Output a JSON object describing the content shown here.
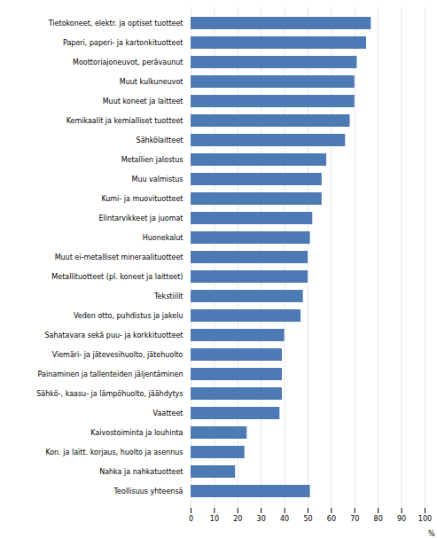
{
  "chart_data": {
    "type": "bar",
    "orientation": "horizontal",
    "categories": [
      "Tietokoneet, elektr. ja optiset tuotteet",
      "Paperi, paperi- ja kartonkituotteet",
      "Moottoriajoneuvot, perävaunut",
      "Muut kulkuneuvot",
      "Muut koneet ja laitteet",
      "Kemikaalit ja kemialliset tuotteet",
      "Sähkölaitteet",
      "Metallien jalostus",
      "Muu valmistus",
      "Kumi- ja muovituotteet",
      "Elintarvikkeet ja juomat",
      "Huonekalut",
      "Muut ei-metalliset mineraalituotteet",
      "Metallituotteet (pl. koneet ja laitteet)",
      "Tekstiilit",
      "Veden otto, puhdistus ja jakelu",
      "Sahatavara sekä puu- ja korkkituotteet",
      "Viemäri- ja jätevesihuolto, jätehuolto",
      "Painaminen ja tallenteiden jäljentäminen",
      "Sähkö-, kaasu- ja lämpöhuolto, jäähdytys",
      "Vaatteet",
      "Kaivostoiminta ja louhinta",
      "Kon. ja laitt. korjaus, huolto ja asennus",
      "Nahka ja nahkatuotteet",
      "Teollisuus yhteensä"
    ],
    "values": [
      77,
      75,
      71,
      70,
      70,
      68,
      66,
      58,
      56,
      56,
      52,
      51,
      50,
      50,
      48,
      47,
      40,
      39,
      39,
      39,
      38,
      24,
      23,
      19,
      51
    ],
    "color": "#4d7ab5",
    "xlabel": "%",
    "xlim": [
      0,
      100
    ],
    "xticks": [
      0,
      10,
      20,
      30,
      40,
      50,
      60,
      70,
      80,
      90,
      100
    ],
    "grid": true
  }
}
